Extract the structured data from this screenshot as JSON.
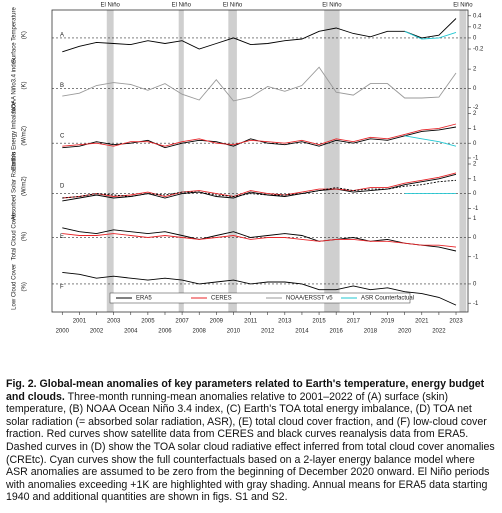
{
  "chart_data": {
    "type": "line",
    "x": [
      2000,
      2001,
      2002,
      2003,
      2004,
      2005,
      2006,
      2007,
      2008,
      2009,
      2010,
      2011,
      2012,
      2013,
      2014,
      2015,
      2016,
      2017,
      2018,
      2019,
      2020,
      2021,
      2022,
      2023
    ],
    "xlim": [
      1999.4,
      2023.7
    ],
    "xticks": [
      2000,
      2001,
      2002,
      2003,
      2004,
      2005,
      2006,
      2007,
      2008,
      2009,
      2010,
      2011,
      2012,
      2013,
      2014,
      2015,
      2016,
      2017,
      2018,
      2019,
      2020,
      2021,
      2022,
      2023
    ],
    "el_nino": {
      "label": "El Niño",
      "periods": [
        [
          2002.6,
          2003.0
        ],
        [
          2006.8,
          2007.1
        ],
        [
          2009.7,
          2010.2
        ],
        [
          2015.3,
          2016.2
        ],
        [
          2023.2,
          2023.6
        ]
      ]
    },
    "legend": [
      {
        "name": "ERA5",
        "color": "#000000"
      },
      {
        "name": "CERES",
        "color": "#e8262a"
      },
      {
        "name": "NOAA/ERSST v5",
        "color": "#9a9a9a"
      },
      {
        "name": "ASR Counterfactual",
        "color": "#22c7d2"
      }
    ],
    "panels": [
      {
        "label": "A",
        "ylabel": "Surface Temperature",
        "yunit": "(K)",
        "ylim": [
          -0.35,
          0.45
        ],
        "yticks": [
          -0.2,
          0,
          0.2,
          0.4
        ],
        "series": [
          {
            "color": "#000000",
            "values": [
              -0.25,
              -0.15,
              -0.08,
              -0.1,
              -0.12,
              -0.05,
              -0.1,
              -0.05,
              -0.2,
              -0.1,
              0.0,
              -0.12,
              -0.1,
              -0.05,
              -0.02,
              0.12,
              0.18,
              0.08,
              0.02,
              0.12,
              0.12,
              0.0,
              0.05,
              0.35
            ]
          },
          {
            "color": "#22c7d2",
            "values": [
              null,
              null,
              null,
              null,
              null,
              null,
              null,
              null,
              null,
              null,
              null,
              null,
              null,
              null,
              null,
              null,
              null,
              null,
              null,
              null,
              0.12,
              -0.02,
              0.0,
              0.1
            ]
          }
        ]
      },
      {
        "label": "B",
        "ylabel": "NOAA Niño3.4 index",
        "yunit": "(K)",
        "ylim": [
          -2,
          2.6
        ],
        "yticks": [
          -2,
          0,
          2
        ],
        "series": [
          {
            "color": "#9a9a9a",
            "values": [
              -0.8,
              -0.5,
              0.3,
              0.6,
              0.4,
              -0.2,
              0.5,
              -0.6,
              -1.2,
              0.9,
              -1.3,
              -0.9,
              0.2,
              -0.3,
              0.3,
              2.2,
              -0.4,
              -0.7,
              0.5,
              0.5,
              -1.0,
              -1.0,
              -0.9,
              1.6
            ]
          }
        ]
      },
      {
        "label": "C",
        "ylabel": "Earth's Energy Imbalance",
        "yunit": "(W/m2)",
        "ylim": [
          -1,
          2
        ],
        "yticks": [
          -1,
          0,
          1,
          2
        ],
        "series": [
          {
            "color": "#000000",
            "values": [
              -0.3,
              -0.2,
              0.1,
              -0.1,
              0.0,
              0.2,
              -0.3,
              0.0,
              0.2,
              0.1,
              -0.2,
              0.3,
              0.0,
              -0.1,
              0.1,
              -0.2,
              0.2,
              0.0,
              0.3,
              0.2,
              0.5,
              0.8,
              0.9,
              1.1
            ]
          },
          {
            "color": "#e8262a",
            "values": [
              -0.2,
              -0.1,
              0.0,
              -0.2,
              0.1,
              0.1,
              -0.2,
              0.1,
              0.3,
              0.0,
              -0.1,
              0.2,
              0.1,
              0.0,
              0.2,
              -0.1,
              0.3,
              0.1,
              0.4,
              0.3,
              0.6,
              0.9,
              1.0,
              1.3
            ]
          },
          {
            "color": "#22c7d2",
            "values": [
              null,
              null,
              null,
              null,
              null,
              null,
              null,
              null,
              null,
              null,
              null,
              null,
              null,
              null,
              null,
              null,
              null,
              null,
              null,
              null,
              0.5,
              0.3,
              0.1,
              -0.2
            ]
          }
        ]
      },
      {
        "label": "D",
        "ylabel": "Absorbed Solar Radiation",
        "yunit": "(W/m2)",
        "ylim": [
          -1,
          2
        ],
        "yticks": [
          -1,
          0,
          1,
          2
        ],
        "series": [
          {
            "color": "#000000",
            "values": [
              -0.5,
              -0.3,
              -0.1,
              -0.3,
              -0.2,
              0.0,
              -0.3,
              0.0,
              0.1,
              -0.2,
              -0.3,
              0.1,
              -0.1,
              -0.2,
              0.0,
              0.2,
              0.3,
              0.1,
              0.2,
              0.3,
              0.6,
              0.8,
              1.0,
              1.3
            ]
          },
          {
            "color": "#e8262a",
            "values": [
              -0.3,
              -0.2,
              0.0,
              -0.2,
              -0.1,
              0.1,
              -0.2,
              0.1,
              0.2,
              0.0,
              -0.2,
              0.2,
              0.0,
              -0.1,
              0.1,
              0.3,
              0.3,
              0.2,
              0.4,
              0.4,
              0.7,
              0.9,
              1.1,
              1.4
            ]
          },
          {
            "color": "#000000",
            "dash": true,
            "values": [
              -0.3,
              -0.2,
              0.0,
              -0.1,
              -0.2,
              0.0,
              -0.1,
              0.1,
              0.1,
              -0.1,
              -0.2,
              0.0,
              -0.1,
              -0.1,
              0.0,
              0.2,
              0.4,
              0.2,
              0.3,
              0.3,
              0.5,
              0.6,
              0.8,
              0.9
            ]
          },
          {
            "color": "#22c7d2",
            "values": [
              null,
              null,
              null,
              null,
              null,
              null,
              null,
              null,
              null,
              null,
              null,
              null,
              null,
              null,
              null,
              null,
              null,
              null,
              null,
              null,
              0,
              0,
              0,
              0
            ]
          }
        ]
      },
      {
        "label": "E",
        "ylabel": "Total Cloud Cover",
        "yunit": "(%)",
        "ylim": [
          -1.1,
          1.2
        ],
        "yticks": [
          -1,
          0,
          1
        ],
        "series": [
          {
            "color": "#000000",
            "values": [
              0.5,
              0.3,
              0.2,
              0.4,
              0.3,
              0.2,
              0.3,
              0.1,
              -0.1,
              0.1,
              0.3,
              0.0,
              0.1,
              0.2,
              0.1,
              -0.2,
              -0.1,
              0.0,
              -0.2,
              -0.1,
              -0.3,
              -0.4,
              -0.5,
              -0.7
            ]
          },
          {
            "color": "#e8262a",
            "values": [
              0.2,
              0.1,
              0.1,
              0.2,
              0.1,
              0.0,
              0.1,
              0.0,
              -0.1,
              0.0,
              0.1,
              -0.1,
              0.0,
              0.0,
              -0.1,
              -0.2,
              -0.1,
              -0.1,
              -0.2,
              -0.2,
              -0.3,
              -0.4,
              -0.4,
              -0.5
            ]
          }
        ]
      },
      {
        "label": "F",
        "ylabel": "Low Cloud Cover",
        "yunit": "(%)",
        "ylim": [
          -1.3,
          1
        ],
        "yticks": [
          -1,
          0
        ],
        "series": [
          {
            "color": "#000000",
            "values": [
              0.6,
              0.5,
              0.3,
              0.4,
              0.3,
              0.2,
              0.3,
              0.2,
              0.0,
              0.1,
              0.2,
              0.0,
              0.1,
              0.1,
              0.0,
              -0.3,
              -0.3,
              -0.1,
              -0.3,
              -0.2,
              -0.4,
              -0.5,
              -0.7,
              -1.1
            ]
          }
        ]
      }
    ]
  },
  "caption": {
    "title": "Fig. 2. Global-mean anomalies of key parameters related to Earth's temperature, energy budget and clouds.",
    "body": "Three-month running-mean anomalies relative to 2001–2022 of (A) surface (skin) temperature, (B) NOAA Ocean Niño 3.4 index, (C) Earth's TOA total energy imbalance, (D) TOA net solar radiation (= absorbed solar radiation, ASR), (E) total cloud cover fraction, and (F) low-cloud cover fraction. Red curves show satellite data from CERES and black curves reanalysis data from ERA5. Dashed curves in (D) show the TOA solar cloud radiative effect inferred from total cloud cover anomalies (CREtc). Cyan curves show the full counterfactuals based on a 2-layer energy balance model where ASR anomalies are assumed to be zero from the beginning of December 2020 onward. El Niño periods with anomalies exceeding +1K are highlighted with gray shading. Annual means for ERA5 data starting 1940 and additional quantities are shown in figs. S1 and S2."
  }
}
